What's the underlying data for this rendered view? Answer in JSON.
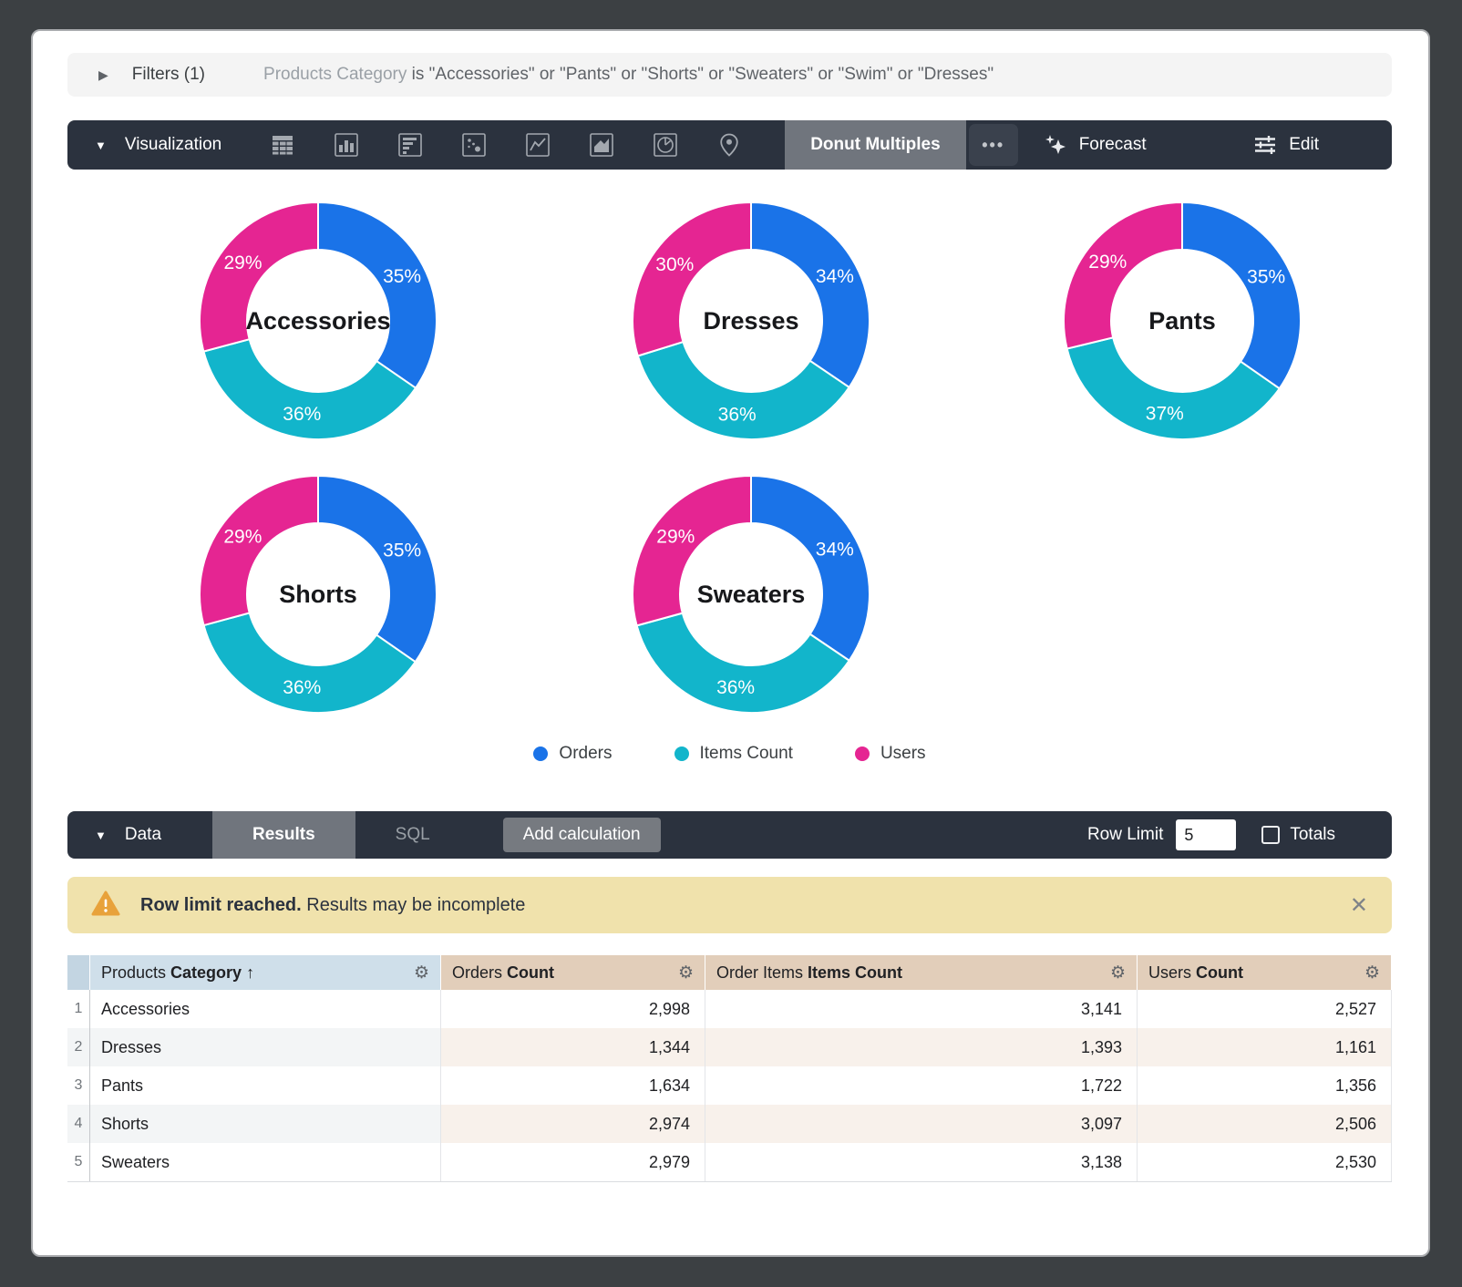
{
  "filters_bar": {
    "label": "Filters (1)",
    "filter_field": "Products Category",
    "filter_clause": "is \"Accessories\" or \"Pants\" or \"Shorts\" or \"Sweaters\" or \"Swim\" or \"Dresses\""
  },
  "viz_toolbar": {
    "label": "Visualization",
    "chart_type_icons": [
      "table-icon",
      "column-chart-icon",
      "bar-chart-icon",
      "scatter-plot-icon",
      "line-chart-icon",
      "area-chart-icon",
      "pie-chart-icon",
      "map-pin-icon"
    ],
    "selected_viz": "Donut Multiples",
    "more_options": "•••",
    "forecast_label": "Forecast",
    "edit_label": "Edit"
  },
  "chart_data": {
    "type": "pie",
    "subtype": "donut_multiples",
    "legend_position": "bottom",
    "series": [
      {
        "name": "Orders",
        "color": "#1A73E8"
      },
      {
        "name": "Items Count",
        "color": "#12B5CB"
      },
      {
        "name": "Users",
        "color": "#E52592"
      }
    ],
    "donuts": [
      {
        "label": "Accessories",
        "values": [
          2998,
          3141,
          2527
        ],
        "percent_labels": [
          "35%",
          "36%",
          "29%"
        ]
      },
      {
        "label": "Dresses",
        "values": [
          1344,
          1393,
          1161
        ],
        "percent_labels": [
          "34%",
          "36%",
          "30%"
        ]
      },
      {
        "label": "Pants",
        "values": [
          1634,
          1722,
          1356
        ],
        "percent_labels": [
          "35%",
          "37%",
          "29%"
        ]
      },
      {
        "label": "Shorts",
        "values": [
          2974,
          3097,
          2506
        ],
        "percent_labels": [
          "35%",
          "36%",
          "29%"
        ]
      },
      {
        "label": "Sweaters",
        "values": [
          2979,
          3138,
          2530
        ],
        "percent_labels": [
          "34%",
          "36%",
          "29%"
        ]
      }
    ]
  },
  "data_bar": {
    "label": "Data",
    "tabs": [
      {
        "label": "Results",
        "active": true
      },
      {
        "label": "SQL",
        "active": false
      }
    ],
    "add_calculation_label": "Add calculation",
    "row_limit_label": "Row Limit",
    "row_limit_value": "5",
    "totals_label": "Totals",
    "totals_checked": false
  },
  "warning_banner": {
    "bold_text": "Row limit reached.",
    "text": " Results may be incomplete",
    "close_icon": "✕"
  },
  "table": {
    "columns": [
      {
        "view": "Products",
        "field": "Category",
        "sort_arrow": " ↑",
        "kind": "dimension"
      },
      {
        "view": "Orders",
        "field": "Count",
        "sort_arrow": "",
        "kind": "measure"
      },
      {
        "view": "Order Items",
        "field": "Items Count",
        "sort_arrow": "",
        "kind": "measure"
      },
      {
        "view": "Users",
        "field": "Count",
        "sort_arrow": "",
        "kind": "measure"
      }
    ],
    "rows": [
      {
        "num": "1",
        "category": "Accessories",
        "values": [
          "2,998",
          "3,141",
          "2,527"
        ]
      },
      {
        "num": "2",
        "category": "Dresses",
        "values": [
          "1,344",
          "1,393",
          "1,161"
        ]
      },
      {
        "num": "3",
        "category": "Pants",
        "values": [
          "1,634",
          "1,722",
          "1,356"
        ]
      },
      {
        "num": "4",
        "category": "Shorts",
        "values": [
          "2,974",
          "3,097",
          "2,506"
        ]
      },
      {
        "num": "5",
        "category": "Sweaters",
        "values": [
          "2,979",
          "3,138",
          "2,530"
        ]
      }
    ]
  },
  "colors": {
    "orders_blue": "#1A73E8",
    "items_teal": "#12B5CB",
    "users_pink": "#E52592",
    "toolbar_dark": "#2B323E",
    "selected_segment": "#70757D",
    "warning_bg": "#F0E2AC",
    "warning_icon": "#E8A23B",
    "header_dimension_bg": "#CFDFEA",
    "header_measure_bg": "#E2CEBA"
  }
}
